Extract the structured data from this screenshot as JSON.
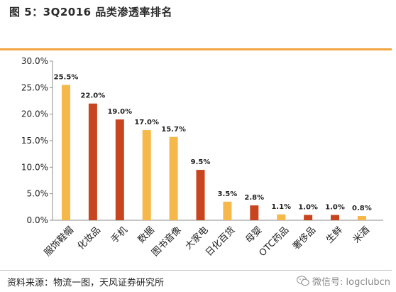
{
  "figure_title": "图 5：3Q2016 品类渗透率排名",
  "source_note": "资料来源：物流一图，天风证券研究所",
  "watermark": "微信号: logclubcn",
  "colors": {
    "rule": "#f2a540",
    "bar_light": "#f6b84a",
    "bar_dark": "#c8461f"
  },
  "chart_data": {
    "type": "bar",
    "title": "",
    "xlabel": "",
    "ylabel": "",
    "categories": [
      "服饰鞋帽",
      "化妆品",
      "手机",
      "数据",
      "图书音像",
      "大家电",
      "日化百货",
      "母婴",
      "OTC药品",
      "奢侈品",
      "生鲜",
      "米酒"
    ],
    "values": [
      25.5,
      22.0,
      19.0,
      17.0,
      15.7,
      9.5,
      3.5,
      2.8,
      1.1,
      1.0,
      1.0,
      0.8
    ],
    "value_labels": [
      "25.5%",
      "22.0%",
      "19.0%",
      "17.0%",
      "15.7%",
      "9.5%",
      "3.5%",
      "2.8%",
      "1.1%",
      "1.0%",
      "1.0%",
      "0.8%"
    ],
    "bar_colors": [
      "light",
      "dark",
      "dark",
      "light",
      "light",
      "dark",
      "light",
      "dark",
      "light",
      "dark",
      "dark",
      "light"
    ],
    "ylim": [
      0,
      30
    ],
    "yticks": [
      0,
      5,
      10,
      15,
      20,
      25,
      30
    ],
    "ytick_labels": [
      "0.0%",
      "5.0%",
      "10.0%",
      "15.0%",
      "20.0%",
      "25.0%",
      "30.0%"
    ],
    "grid": false,
    "legend": false
  }
}
